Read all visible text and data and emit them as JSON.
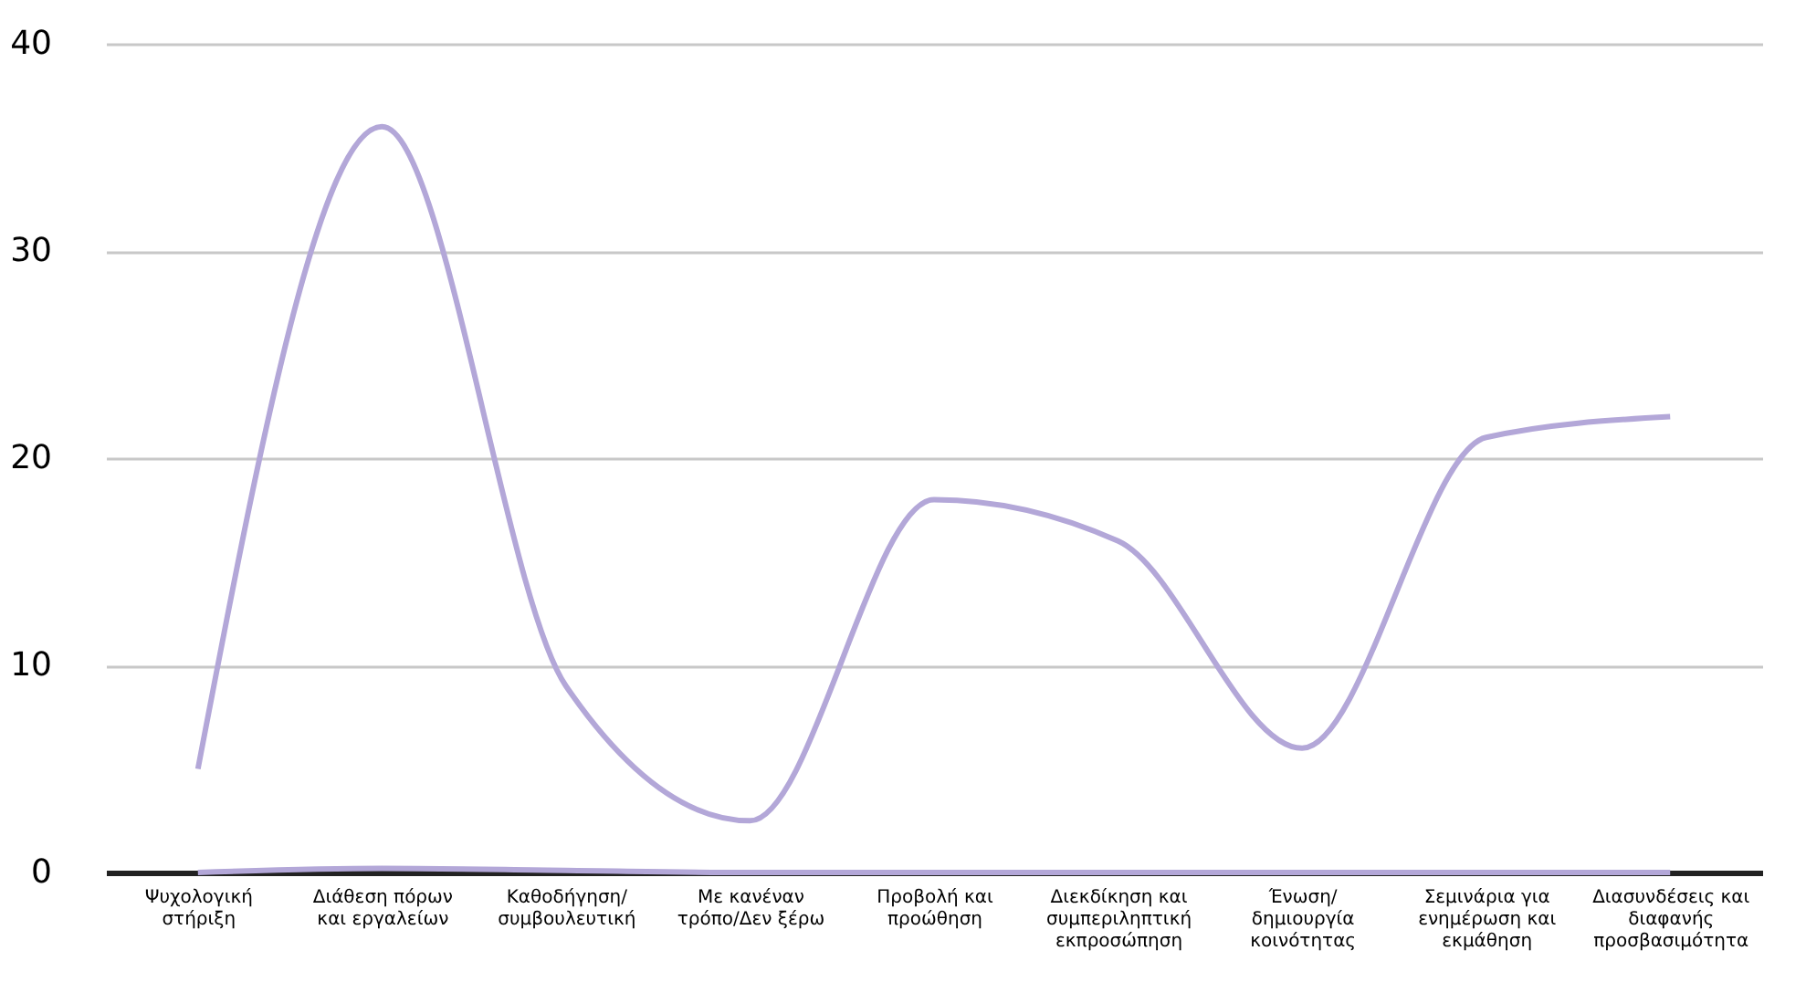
{
  "chart_data": {
    "type": "line",
    "categories": [
      "Ψυχολογική στήριξη",
      "Διάθεση πόρων και εργαλείων",
      "Καθοδήγηση/ συμβουλευτική",
      "Με κανέναν τρόπο/Δεν ξέρω",
      "Προβολή και προώθηση",
      "Διεκδίκηση και συμπεριληπτική εκπροσώπηση",
      "Ένωση/ δημιουργία κοινότητας",
      "Σεμινάρια για ενημέρωση και εκμάθηση",
      "Διασυνδέσεις και διαφανής προσβασιμότητα"
    ],
    "series": [
      {
        "color": "#b3a7d8",
        "values": [
          5,
          36,
          9,
          2.5,
          18,
          16,
          6,
          21,
          22
        ]
      },
      {
        "color": "#b3a7d8",
        "values": [
          0,
          0.2,
          0.1,
          0,
          0,
          0,
          0,
          0,
          0
        ]
      }
    ],
    "ylim": [
      0,
      40
    ],
    "yticks": [
      0,
      10,
      20,
      30,
      40
    ],
    "grid": "y",
    "line_style": "solid",
    "marker": "none"
  }
}
